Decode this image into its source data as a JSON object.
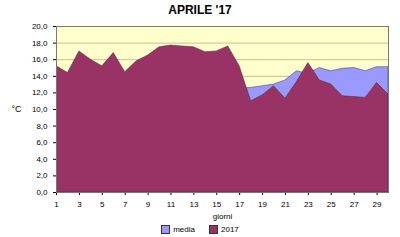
{
  "chart_data": {
    "type": "area",
    "title": "APRILE '17",
    "x_label": "giorni",
    "y_label": "°C",
    "x": [
      1,
      2,
      3,
      4,
      5,
      6,
      7,
      8,
      9,
      10,
      11,
      12,
      13,
      14,
      15,
      16,
      17,
      18,
      19,
      20,
      21,
      22,
      23,
      24,
      25,
      26,
      27,
      28,
      29,
      30
    ],
    "series": [
      {
        "name": "media",
        "color": "#9999ff",
        "values": [
          11.5,
          11.6,
          11.6,
          11.7,
          11.7,
          11.8,
          11.8,
          11.9,
          11.9,
          12.0,
          12.0,
          12.1,
          12.1,
          12.2,
          12.3,
          12.4,
          12.5,
          12.6,
          12.8,
          13.0,
          13.5,
          14.6,
          14.3,
          15.0,
          14.6,
          14.9,
          15.0,
          14.6,
          15.1,
          15.1
        ]
      },
      {
        "name": "2017",
        "color": "#993366",
        "values": [
          15.2,
          14.4,
          17.0,
          16.0,
          15.2,
          16.8,
          14.5,
          15.8,
          16.5,
          17.5,
          17.7,
          17.6,
          17.5,
          16.9,
          17.0,
          17.6,
          15.2,
          11.0,
          11.7,
          12.8,
          11.3,
          13.3,
          15.6,
          13.5,
          13.0,
          11.6,
          11.5,
          11.4,
          13.2,
          11.8
        ]
      }
    ],
    "xlim": [
      1,
      30
    ],
    "xticks": [
      1,
      3,
      5,
      7,
      9,
      11,
      13,
      15,
      17,
      19,
      21,
      23,
      25,
      27,
      29
    ],
    "ylim": [
      0,
      20
    ],
    "yticks": [
      {
        "value": 0,
        "label": "0,0"
      },
      {
        "value": 2,
        "label": "2,0"
      },
      {
        "value": 4,
        "label": "4,0"
      },
      {
        "value": 6,
        "label": "6,0"
      },
      {
        "value": 8,
        "label": "8,0"
      },
      {
        "value": 10,
        "label": "10,0"
      },
      {
        "value": 12,
        "label": "12,0"
      },
      {
        "value": 14,
        "label": "14,0"
      },
      {
        "value": 16,
        "label": "16,0"
      },
      {
        "value": 18,
        "label": "18,0"
      },
      {
        "value": 20,
        "label": "20,0"
      }
    ],
    "grid": true,
    "legend": "bottom"
  }
}
